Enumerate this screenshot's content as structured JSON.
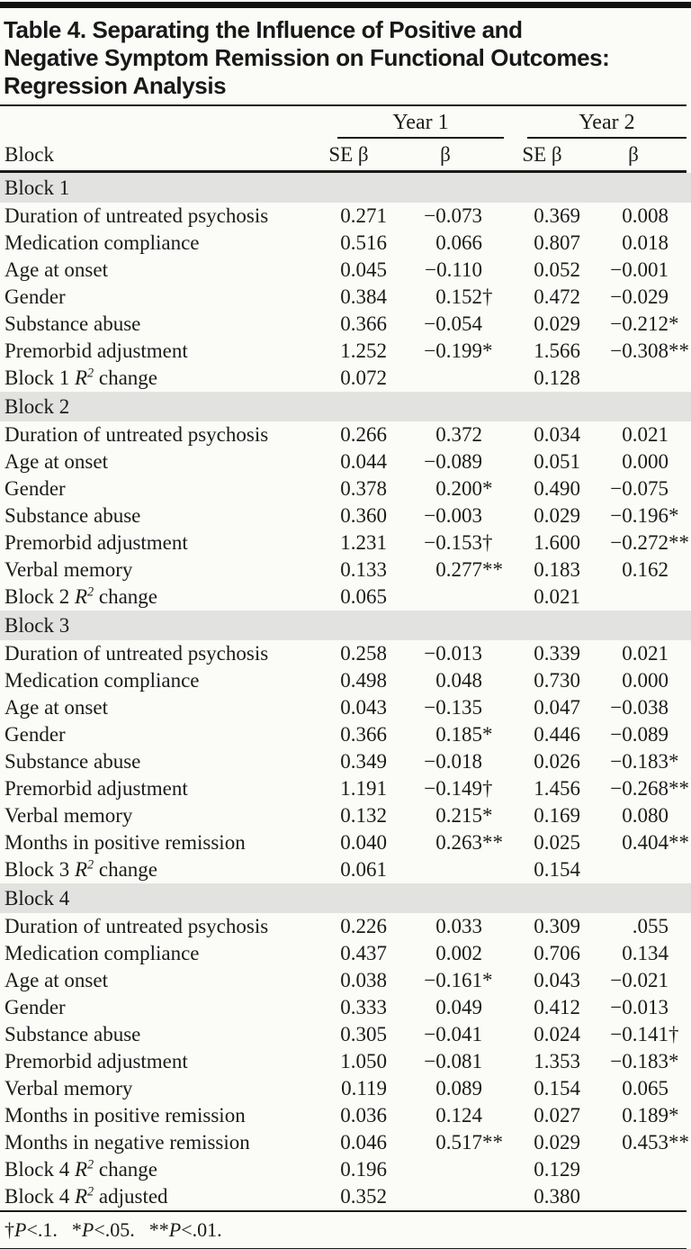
{
  "table": {
    "title_lines": [
      "Table 4. Separating the Influence of Positive and",
      "Negative Symptom Remission on Functional Outcomes:",
      "Regression Analysis"
    ],
    "row_header": "Block",
    "col_groups": [
      "Year 1",
      "Year 2"
    ],
    "sub_headers": [
      "SE β",
      "β",
      "SE β",
      "β"
    ],
    "sections": [
      {
        "header": "Block 1",
        "rows": [
          {
            "label": "Duration of untreated psychosis",
            "values": [
              "0.271",
              "−0.073",
              "0.369",
              "0.008"
            ]
          },
          {
            "label": "Medication compliance",
            "values": [
              "0.516",
              "0.066",
              "0.807",
              "0.018"
            ]
          },
          {
            "label": "Age at onset",
            "values": [
              "0.045",
              "−0.110",
              "0.052",
              "−0.001"
            ]
          },
          {
            "label": "Gender",
            "values": [
              "0.384",
              "0.152†",
              "0.472",
              "−0.029"
            ]
          },
          {
            "label": "Substance abuse",
            "values": [
              "0.366",
              "−0.054",
              "0.029",
              "−0.212*"
            ]
          },
          {
            "label": "Premorbid adjustment",
            "values": [
              "1.252",
              "−0.199*",
              "1.566",
              "−0.308**"
            ]
          },
          {
            "label": "Block 1 R2 change",
            "values": [
              "0.072",
              "",
              "0.128",
              ""
            ]
          }
        ]
      },
      {
        "header": "Block 2",
        "rows": [
          {
            "label": "Duration of untreated psychosis",
            "values": [
              "0.266",
              "0.372",
              "0.034",
              "0.021"
            ]
          },
          {
            "label": "Age at onset",
            "values": [
              "0.044",
              "−0.089",
              "0.051",
              "0.000"
            ]
          },
          {
            "label": "Gender",
            "values": [
              "0.378",
              "0.200*",
              "0.490",
              "−0.075"
            ]
          },
          {
            "label": "Substance abuse",
            "values": [
              "0.360",
              "−0.003",
              "0.029",
              "−0.196*"
            ]
          },
          {
            "label": "Premorbid adjustment",
            "values": [
              "1.231",
              "−0.153†",
              "1.600",
              "−0.272**"
            ]
          },
          {
            "label": "Verbal memory",
            "values": [
              "0.133",
              "0.277**",
              "0.183",
              "0.162"
            ]
          },
          {
            "label": "Block 2 R2 change",
            "values": [
              "0.065",
              "",
              "0.021",
              ""
            ]
          }
        ]
      },
      {
        "header": "Block 3",
        "rows": [
          {
            "label": "Duration of untreated psychosis",
            "values": [
              "0.258",
              "−0.013",
              "0.339",
              "0.021"
            ]
          },
          {
            "label": "Medication compliance",
            "values": [
              "0.498",
              "0.048",
              "0.730",
              "0.000"
            ]
          },
          {
            "label": "Age at onset",
            "values": [
              "0.043",
              "−0.135",
              "0.047",
              "−0.038"
            ]
          },
          {
            "label": "Gender",
            "values": [
              "0.366",
              "0.185*",
              "0.446",
              "−0.089"
            ]
          },
          {
            "label": "Substance abuse",
            "values": [
              "0.349",
              "−0.018",
              "0.026",
              "−0.183*"
            ]
          },
          {
            "label": "Premorbid adjustment",
            "values": [
              "1.191",
              "−0.149†",
              "1.456",
              "−0.268**"
            ]
          },
          {
            "label": "Verbal memory",
            "values": [
              "0.132",
              "0.215*",
              "0.169",
              "0.080"
            ]
          },
          {
            "label": "Months in positive remission",
            "values": [
              "0.040",
              "0.263**",
              "0.025",
              "0.404**"
            ]
          },
          {
            "label": "Block 3 R2 change",
            "values": [
              "0.061",
              "",
              "0.154",
              ""
            ]
          }
        ]
      },
      {
        "header": "Block 4",
        "rows": [
          {
            "label": "Duration of untreated psychosis",
            "values": [
              "0.226",
              "0.033",
              "0.309",
              ".055"
            ]
          },
          {
            "label": "Medication compliance",
            "values": [
              "0.437",
              "0.002",
              "0.706",
              "0.134"
            ]
          },
          {
            "label": "Age at onset",
            "values": [
              "0.038",
              "−0.161*",
              "0.043",
              "−0.021"
            ]
          },
          {
            "label": "Gender",
            "values": [
              "0.333",
              "0.049",
              "0.412",
              "−0.013"
            ]
          },
          {
            "label": "Substance abuse",
            "values": [
              "0.305",
              "−0.041",
              "0.024",
              "−0.141†"
            ]
          },
          {
            "label": "Premorbid adjustment",
            "values": [
              "1.050",
              "−0.081",
              "1.353",
              "−0.183*"
            ]
          },
          {
            "label": "Verbal memory",
            "values": [
              "0.119",
              "0.089",
              "0.154",
              "0.065"
            ]
          },
          {
            "label": "Months in positive remission",
            "values": [
              "0.036",
              "0.124",
              "0.027",
              "0.189*"
            ]
          },
          {
            "label": "Months in negative remission",
            "values": [
              "0.046",
              "0.517**",
              "0.029",
              "0.453**"
            ]
          },
          {
            "label": "Block 4 R2 change",
            "values": [
              "0.196",
              "",
              "0.129",
              ""
            ]
          },
          {
            "label": "Block 4 R2 adjusted",
            "values": [
              "0.352",
              "",
              "0.380",
              ""
            ]
          }
        ]
      }
    ],
    "footnote_segments": [
      "†P<.1.",
      "*P<.05.",
      "**P<.01."
    ]
  }
}
